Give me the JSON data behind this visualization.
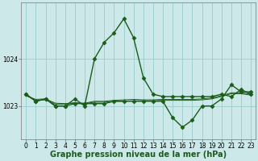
{
  "xlabel": "Graphe pression niveau de la mer (hPa)",
  "background_color": "#cce8e8",
  "plot_bg_color": "#cce8e8",
  "grid_color": "#99cccc",
  "yticks": [
    1023,
    1024
  ],
  "ylim": [
    1022.3,
    1025.2
  ],
  "xlim": [
    -0.5,
    23.5
  ],
  "xticks": [
    0,
    1,
    2,
    3,
    4,
    5,
    6,
    7,
    8,
    9,
    10,
    11,
    12,
    13,
    14,
    15,
    16,
    17,
    18,
    19,
    20,
    21,
    22,
    23
  ],
  "xlabel_fontsize": 7,
  "tick_fontsize": 5.5,
  "series": [
    {
      "x": [
        0,
        1,
        2,
        3,
        4,
        5,
        6,
        7,
        8,
        9,
        10,
        11,
        12,
        13,
        14,
        15,
        16,
        17,
        18,
        19,
        20,
        21,
        22,
        23
      ],
      "y": [
        1023.25,
        1023.1,
        1023.15,
        1023.0,
        1023.0,
        1023.15,
        1023.0,
        1024.0,
        1024.35,
        1024.55,
        1024.85,
        1024.45,
        1023.6,
        1023.25,
        1023.2,
        1023.2,
        1023.2,
        1023.2,
        1023.2,
        1023.2,
        1023.25,
        1023.2,
        1023.35,
        1023.25
      ],
      "color": "#1a5c1a",
      "linewidth": 1.0,
      "marker": "D",
      "markersize": 2.5
    },
    {
      "x": [
        0,
        1,
        2,
        3,
        4,
        5,
        6,
        7,
        8,
        9,
        10,
        11,
        12,
        13,
        14,
        15,
        16,
        17,
        18,
        19,
        20,
        21,
        22,
        23
      ],
      "y": [
        1023.25,
        1023.1,
        1023.15,
        1023.0,
        1023.0,
        1023.05,
        1023.05,
        1023.05,
        1023.05,
        1023.1,
        1023.1,
        1023.1,
        1023.1,
        1023.1,
        1023.1,
        1022.75,
        1022.55,
        1022.7,
        1023.0,
        1023.0,
        1023.15,
        1023.45,
        1023.3,
        1023.3
      ],
      "color": "#1a5c1a",
      "linewidth": 1.0,
      "marker": "D",
      "markersize": 2.5
    },
    {
      "x": [
        0,
        1,
        2,
        3,
        4,
        5,
        6,
        7,
        8,
        9,
        10,
        11,
        12,
        13,
        14,
        15,
        16,
        17,
        18,
        19,
        20,
        21,
        22,
        23
      ],
      "y": [
        1023.22,
        1023.14,
        1023.15,
        1023.06,
        1023.05,
        1023.07,
        1023.06,
        1023.1,
        1023.1,
        1023.12,
        1023.13,
        1023.14,
        1023.13,
        1023.13,
        1023.14,
        1023.14,
        1023.14,
        1023.14,
        1023.15,
        1023.17,
        1023.22,
        1023.28,
        1023.28,
        1023.25
      ],
      "color": "#1a5c1a",
      "linewidth": 0.7,
      "marker": null,
      "markersize": 0
    },
    {
      "x": [
        0,
        1,
        2,
        3,
        4,
        5,
        6,
        7,
        8,
        9,
        10,
        11,
        12,
        13,
        14,
        15,
        16,
        17,
        18,
        19,
        20,
        21,
        22,
        23
      ],
      "y": [
        1023.22,
        1023.12,
        1023.13,
        1023.04,
        1023.04,
        1023.06,
        1023.05,
        1023.08,
        1023.08,
        1023.1,
        1023.1,
        1023.11,
        1023.11,
        1023.11,
        1023.12,
        1023.12,
        1023.12,
        1023.12,
        1023.13,
        1023.15,
        1023.2,
        1023.26,
        1023.26,
        1023.23
      ],
      "color": "#1a5c1a",
      "linewidth": 0.7,
      "marker": null,
      "markersize": 0
    }
  ]
}
